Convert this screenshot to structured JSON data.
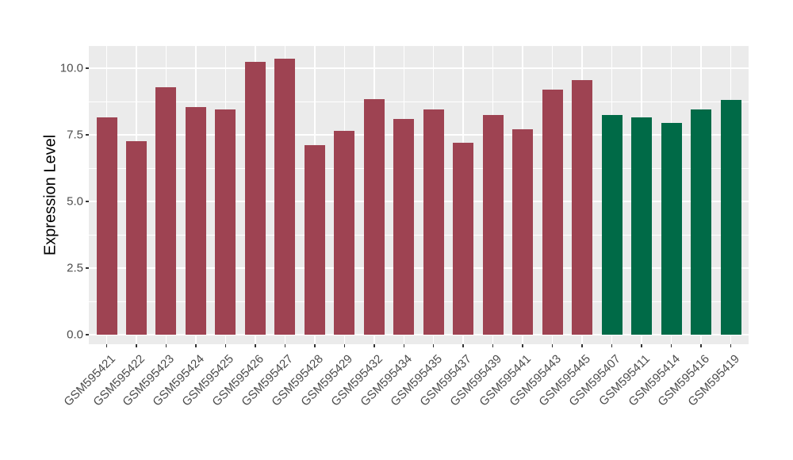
{
  "chart_data": {
    "type": "bar",
    "title": "",
    "xlabel": "",
    "ylabel": "Expression Level",
    "categories": [
      "GSM595421",
      "GSM595422",
      "GSM595423",
      "GSM595424",
      "GSM595425",
      "GSM595426",
      "GSM595427",
      "GSM595428",
      "GSM595429",
      "GSM595432",
      "GSM595434",
      "GSM595435",
      "GSM595437",
      "GSM595439",
      "GSM595441",
      "GSM595443",
      "GSM595445",
      "GSM595407",
      "GSM595411",
      "GSM595414",
      "GSM595416",
      "GSM595419"
    ],
    "values": [
      8.15,
      7.25,
      9.3,
      8.55,
      8.45,
      10.25,
      10.35,
      7.1,
      7.65,
      8.85,
      8.1,
      8.45,
      7.2,
      8.25,
      7.7,
      9.2,
      9.55,
      8.25,
      8.15,
      7.95,
      8.45,
      8.8
    ],
    "group_split_index": 17,
    "group_colors": [
      "#9E4352",
      "#006A47"
    ],
    "yticks": [
      {
        "label": "0.0",
        "value": 0
      },
      {
        "label": "2.5",
        "value": 2.5
      },
      {
        "label": "5.0",
        "value": 5
      },
      {
        "label": "7.5",
        "value": 7.5
      },
      {
        "label": "10.0",
        "value": 10
      }
    ],
    "minor_gridlines": [
      1.25,
      3.75,
      6.25,
      8.75
    ],
    "ylim": [
      0,
      10.85
    ],
    "grid": true,
    "legend": false,
    "panel_bg": "#EBEBEB",
    "grid_color": "#FFFFFF",
    "tick_text_color": "#4D4D4D"
  }
}
